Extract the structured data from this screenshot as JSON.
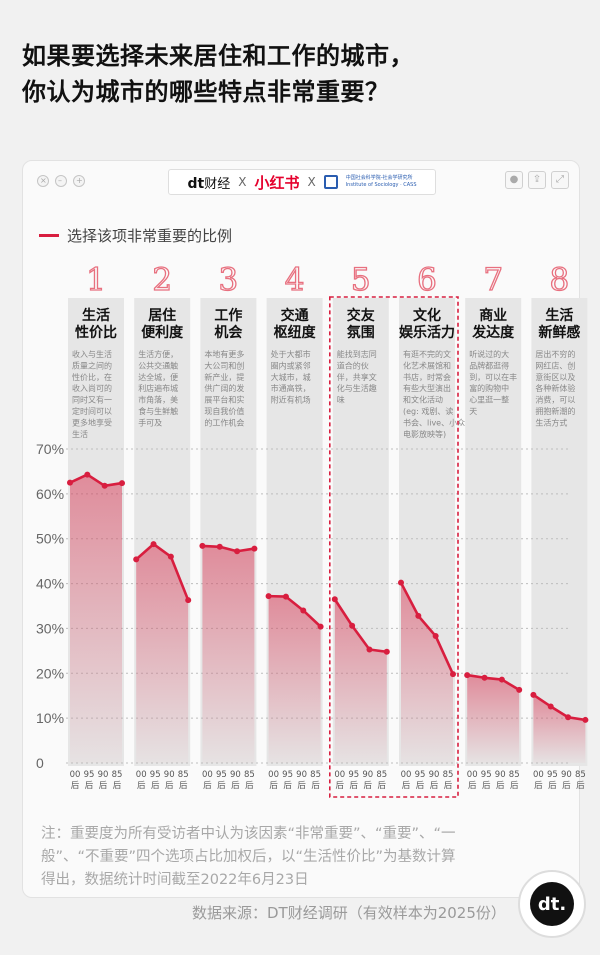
{
  "headline": {
    "line1": "如果要选择未来居住和工作的城市，",
    "line2": "你认为城市的哪些特点非常重要？"
  },
  "titlebar": {
    "dt_logo": "dt",
    "dt_name": "财经",
    "sep1": "X",
    "xhs": "小红书",
    "sep2": "X",
    "cass_text_1": "中国社会科学院-社会学研究所",
    "cass_text_2": "Institute of Sociology · CASS"
  },
  "legend_label": "选择该项非常重要的比例",
  "colors": {
    "accent": "#d81e3f",
    "number": "#e8707f",
    "column_bg": "#e6e6e6",
    "desc_text": "#888888"
  },
  "chart_data": {
    "type": "line",
    "ylim": [
      0,
      70
    ],
    "yticks": [
      "0",
      "10%",
      "20%",
      "30%",
      "40%",
      "50%",
      "60%",
      "70%"
    ],
    "x": [
      "00后",
      "95后",
      "90后",
      "85后"
    ],
    "highlighted": [
      4,
      5
    ],
    "groups": [
      {
        "number": "1",
        "title": [
          "生活",
          "性价比"
        ],
        "desc": [
          "收入与生活",
          "质量之间的",
          "性价比，在",
          "收入尚可的",
          "同时又有一",
          "定时间可以",
          "更多地享受",
          "生活"
        ],
        "values": [
          62.5,
          64.3,
          61.8,
          62.4
        ]
      },
      {
        "number": "2",
        "title": [
          "居住",
          "便利度"
        ],
        "desc": [
          "生活方便，",
          "公共交通触",
          "达全城，便",
          "利店遍布城",
          "市角落，美",
          "食与生鲜触",
          "手可及"
        ],
        "values": [
          45.4,
          48.8,
          46.0,
          36.3
        ]
      },
      {
        "number": "3",
        "title": [
          "工作",
          "机会"
        ],
        "desc": [
          "本地有更多",
          "大公司和创",
          "新产业，提",
          "供广阔的发",
          "展平台和实",
          "现自我价值",
          "的工作机会"
        ],
        "values": [
          48.4,
          48.2,
          47.2,
          47.8
        ]
      },
      {
        "number": "4",
        "title": [
          "交通",
          "枢纽度"
        ],
        "desc": [
          "处于大都市",
          "圈内或紧邻",
          "大城市，城",
          "市通高铁，",
          "附近有机场"
        ],
        "values": [
          37.2,
          37.1,
          34.0,
          30.4
        ]
      },
      {
        "number": "5",
        "title": [
          "交友",
          "氛围"
        ],
        "desc": [
          "能找到志同",
          "道合的伙",
          "伴，共享文",
          "化与生活趣",
          "味"
        ],
        "values": [
          36.5,
          30.6,
          25.3,
          24.8
        ]
      },
      {
        "number": "6",
        "title": [
          "文化",
          "娱乐活力"
        ],
        "desc": [
          "有逛不完的文",
          "化艺术展馆和",
          "书店，时常会",
          "有些大型演出",
          "和文化活动",
          "(eg: 戏剧、读",
          "书会、live、小众",
          "电影放映等)"
        ],
        "values": [
          40.2,
          32.8,
          28.3,
          19.8
        ]
      },
      {
        "number": "7",
        "title": [
          "商业",
          "发达度"
        ],
        "desc": [
          "听说过的大",
          "品牌都逛得",
          "到，可以在丰",
          "富的购物中",
          "心里逛一整",
          "天"
        ],
        "values": [
          19.6,
          19.0,
          18.6,
          16.3
        ]
      },
      {
        "number": "8",
        "title": [
          "生活",
          "新鲜感"
        ],
        "desc": [
          "居出不穷的",
          "网红店、创",
          "意街区以及",
          "各种新体验",
          "消费，可以",
          "拥抱新潮的",
          "生活方式"
        ],
        "values": [
          15.2,
          12.6,
          10.2,
          9.6
        ]
      }
    ]
  },
  "footnote": {
    "line1": "注：重要度为所有受访者中认为该因素“非常重要”、“重要”、“一",
    "line2": "般”、“不重要”四个选项占比加权后，以“生活性价比”为基数计算",
    "line3": "得出，数据统计时间截至2022年6月23日"
  },
  "source": "数据来源：DT财经调研（有效样本为2025份）",
  "fab_label": "dt."
}
